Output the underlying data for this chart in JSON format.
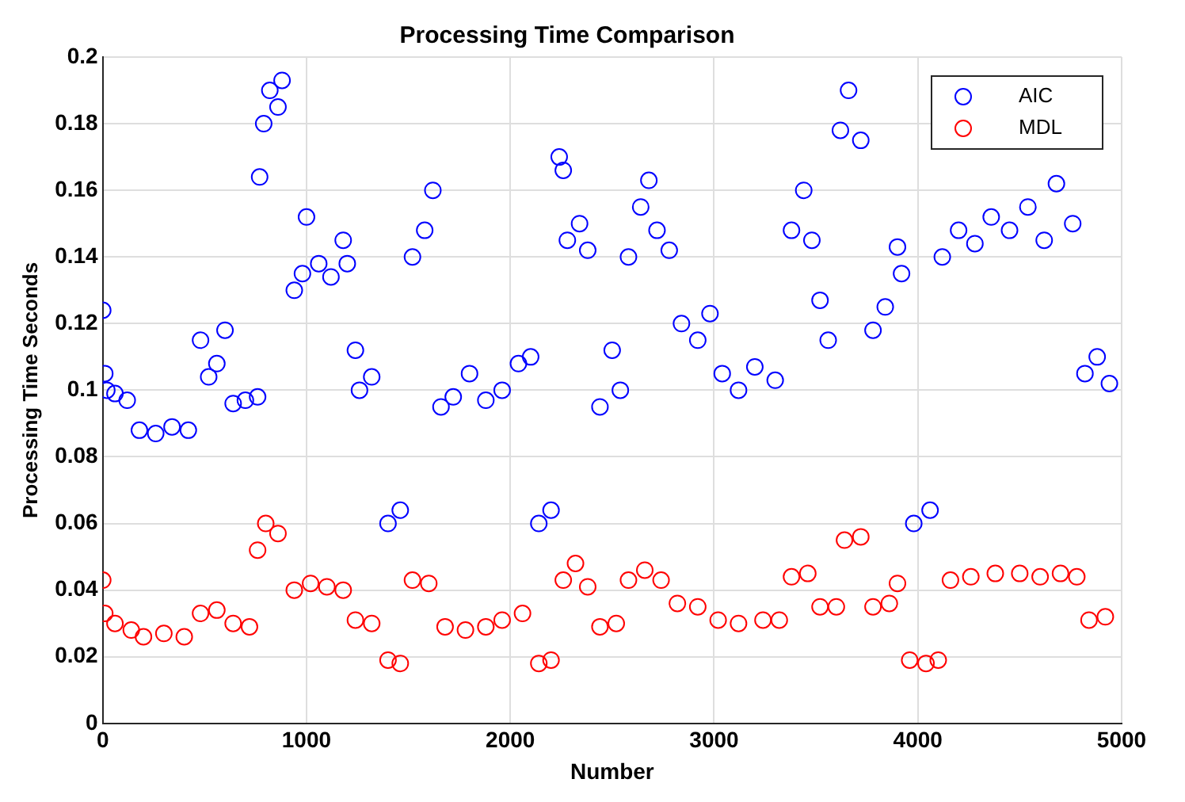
{
  "chart_data": {
    "type": "scatter",
    "title": "Processing Time Comparison",
    "xlabel": "Number",
    "ylabel": "Processing Time Seconds",
    "xlim": [
      0,
      5000
    ],
    "xticks": [
      0,
      1000,
      2000,
      3000,
      4000,
      5000
    ],
    "ylim": [
      0,
      0.2
    ],
    "yticks": [
      0,
      0.02,
      0.04,
      0.06,
      0.08,
      0.1,
      0.12,
      0.14,
      0.16,
      0.18,
      0.2
    ],
    "grid": true,
    "legend": "top right",
    "marker": "circle",
    "series": [
      {
        "name": "AIC",
        "color": "#0000ff",
        "x": [
          0,
          10,
          20,
          60,
          120,
          180,
          260,
          340,
          420,
          480,
          520,
          560,
          600,
          640,
          700,
          760,
          770,
          790,
          820,
          860,
          880,
          940,
          980,
          1000,
          1060,
          1120,
          1180,
          1200,
          1240,
          1260,
          1320,
          1400,
          1460,
          1520,
          1580,
          1620,
          1660,
          1720,
          1800,
          1880,
          1960,
          2040,
          2100,
          2140,
          2200,
          2240,
          2260,
          2280,
          2340,
          2380,
          2440,
          2500,
          2540,
          2580,
          2640,
          2680,
          2720,
          2780,
          2840,
          2920,
          2980,
          3040,
          3120,
          3200,
          3300,
          3380,
          3440,
          3480,
          3520,
          3560,
          3620,
          3660,
          3720,
          3780,
          3840,
          3900,
          3920,
          3980,
          4060,
          4120,
          4200,
          4280,
          4360,
          4450,
          4540,
          4620,
          4680,
          4760,
          4820,
          4880,
          4940
        ],
        "values": [
          0.124,
          0.105,
          0.1,
          0.099,
          0.097,
          0.088,
          0.087,
          0.089,
          0.088,
          0.115,
          0.104,
          0.108,
          0.118,
          0.096,
          0.097,
          0.098,
          0.164,
          0.18,
          0.19,
          0.185,
          0.193,
          0.13,
          0.135,
          0.152,
          0.138,
          0.134,
          0.145,
          0.138,
          0.112,
          0.1,
          0.104,
          0.06,
          0.064,
          0.14,
          0.148,
          0.16,
          0.095,
          0.098,
          0.105,
          0.097,
          0.1,
          0.108,
          0.11,
          0.06,
          0.064,
          0.17,
          0.166,
          0.145,
          0.15,
          0.142,
          0.095,
          0.112,
          0.1,
          0.14,
          0.155,
          0.163,
          0.148,
          0.142,
          0.12,
          0.115,
          0.123,
          0.105,
          0.1,
          0.107,
          0.103,
          0.148,
          0.16,
          0.145,
          0.127,
          0.115,
          0.178,
          0.19,
          0.175,
          0.118,
          0.125,
          0.143,
          0.135,
          0.06,
          0.064,
          0.14,
          0.148,
          0.144,
          0.152,
          0.148,
          0.155,
          0.145,
          0.162,
          0.15,
          0.105,
          0.11,
          0.102
        ]
      },
      {
        "name": "MDL",
        "color": "#ff0000",
        "x": [
          0,
          10,
          60,
          140,
          200,
          300,
          400,
          480,
          560,
          640,
          720,
          760,
          800,
          860,
          940,
          1020,
          1100,
          1180,
          1240,
          1320,
          1400,
          1460,
          1520,
          1600,
          1680,
          1780,
          1880,
          1960,
          2060,
          2140,
          2200,
          2260,
          2320,
          2380,
          2440,
          2520,
          2580,
          2660,
          2740,
          2820,
          2920,
          3020,
          3120,
          3240,
          3320,
          3380,
          3460,
          3520,
          3600,
          3640,
          3720,
          3780,
          3860,
          3900,
          3960,
          4040,
          4100,
          4160,
          4260,
          4380,
          4500,
          4600,
          4700,
          4780,
          4840,
          4920
        ],
        "values": [
          0.043,
          0.033,
          0.03,
          0.028,
          0.026,
          0.027,
          0.026,
          0.033,
          0.034,
          0.03,
          0.029,
          0.052,
          0.06,
          0.057,
          0.04,
          0.042,
          0.041,
          0.04,
          0.031,
          0.03,
          0.019,
          0.018,
          0.043,
          0.042,
          0.029,
          0.028,
          0.029,
          0.031,
          0.033,
          0.018,
          0.019,
          0.043,
          0.048,
          0.041,
          0.029,
          0.03,
          0.043,
          0.046,
          0.043,
          0.036,
          0.035,
          0.031,
          0.03,
          0.031,
          0.031,
          0.044,
          0.045,
          0.035,
          0.035,
          0.055,
          0.056,
          0.035,
          0.036,
          0.042,
          0.019,
          0.018,
          0.019,
          0.043,
          0.044,
          0.045,
          0.045,
          0.044,
          0.045,
          0.044,
          0.031,
          0.032
        ]
      }
    ]
  }
}
